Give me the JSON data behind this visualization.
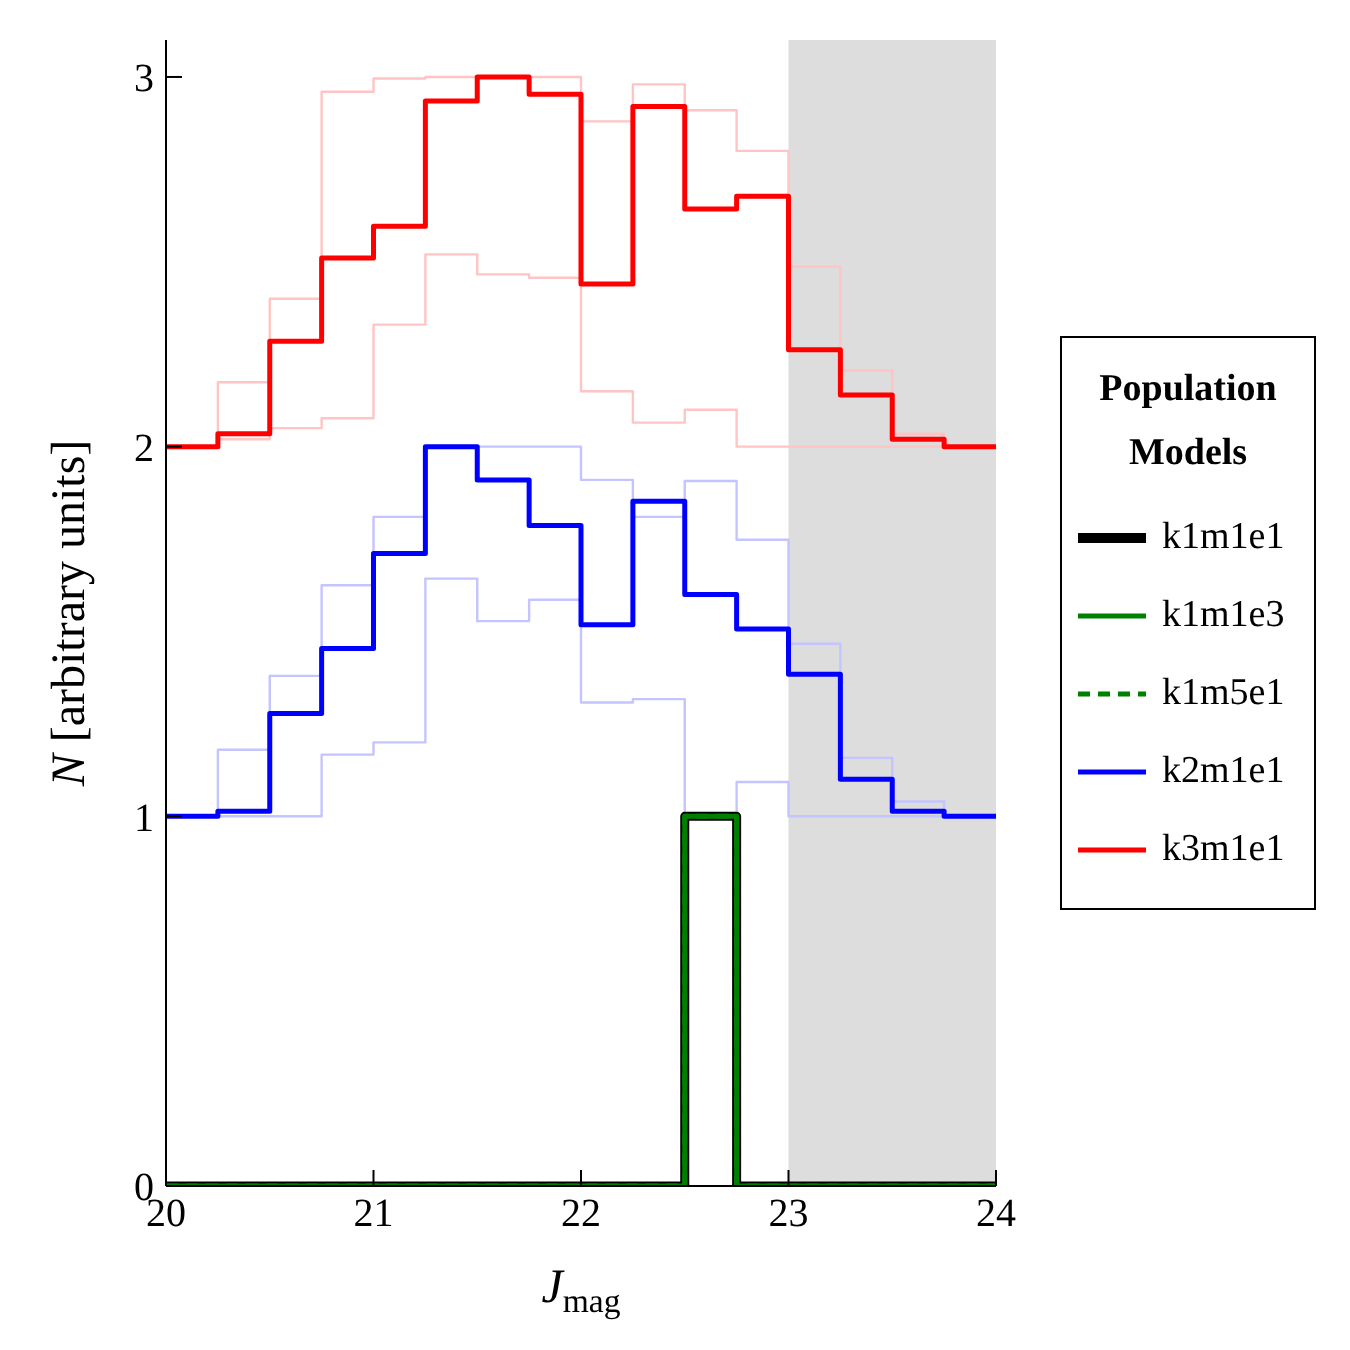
{
  "chart_data": {
    "type": "step",
    "xlabel": "J$_{mag}$",
    "ylabel": "N [arbitrary units]",
    "legend_title": "Population Models",
    "legend": "right",
    "x": [
      20,
      20.25,
      20.5,
      20.75,
      21,
      21.25,
      21.5,
      21.75,
      22,
      22.25,
      22.5,
      22.75,
      23,
      23.25,
      23.5,
      23.75,
      24
    ],
    "xlim": [
      20,
      24
    ],
    "xticks": [
      20,
      21,
      22,
      23,
      24
    ],
    "ylim": [
      0,
      3.1
    ],
    "yticks": [
      0,
      1,
      2,
      3
    ],
    "bands": [
      {
        "axis": "x",
        "from": 23,
        "to": 24,
        "color": "#dddddd"
      }
    ],
    "series": [
      {
        "color": "#ffc4c4",
        "values": [
          2,
          2.174,
          2.4,
          2.96,
          2.996,
          3,
          3,
          3,
          2.88,
          2.98,
          2.91,
          2.8,
          2.487,
          2.206,
          2.035,
          2,
          2
        ]
      },
      {
        "color": "#ffc4c4",
        "values": [
          2,
          2.02,
          2.05,
          2.077,
          2.33,
          2.52,
          2.466,
          2.457,
          2.15,
          2.065,
          2.1,
          2,
          2,
          2,
          2,
          2,
          2
        ]
      },
      {
        "color": "#c4c4ff",
        "values": [
          1,
          1.18,
          1.38,
          1.625,
          1.81,
          2,
          2,
          2,
          1.91,
          1.81,
          1.907,
          1.748,
          1.467,
          1.158,
          1.04,
          1,
          1
        ]
      },
      {
        "color": "#c4c4ff",
        "values": [
          1,
          1,
          1,
          1.167,
          1.2,
          1.643,
          1.528,
          1.586,
          1.308,
          1.317,
          1,
          1.093,
          1,
          1,
          1,
          1,
          1
        ]
      },
      {
        "name": "k1m1e1",
        "color": "#000000",
        "values": [
          0,
          0,
          0,
          0,
          0,
          0,
          0,
          0,
          0,
          0,
          1,
          0,
          0,
          0,
          0,
          0,
          0
        ]
      },
      {
        "name": "k1m1e3",
        "color": "#008000",
        "values": [
          0,
          0,
          0,
          0,
          0,
          0,
          0,
          0,
          0,
          0,
          1,
          0,
          0,
          0,
          0,
          0,
          0
        ]
      },
      {
        "name": "k1m5e1",
        "color": "#008000",
        "line_style": "dashed",
        "values": [
          0,
          0,
          0,
          0,
          0,
          0,
          0,
          0,
          0,
          0,
          1,
          0,
          0,
          0,
          0,
          0,
          0
        ]
      },
      {
        "name": "k2m1e1",
        "color": "#0000ff",
        "values": [
          1,
          1.014,
          1.278,
          1.454,
          1.711,
          2,
          1.91,
          1.787,
          1.518,
          1.852,
          1.6,
          1.507,
          1.384,
          1.1,
          1.014,
          1,
          1
        ]
      },
      {
        "name": "k3m1e1",
        "color": "#ff0000",
        "values": [
          2,
          2.035,
          2.285,
          2.51,
          2.596,
          2.935,
          3,
          2.953,
          2.44,
          2.92,
          2.643,
          2.677,
          2.262,
          2.14,
          2.02,
          2,
          2
        ]
      }
    ]
  }
}
